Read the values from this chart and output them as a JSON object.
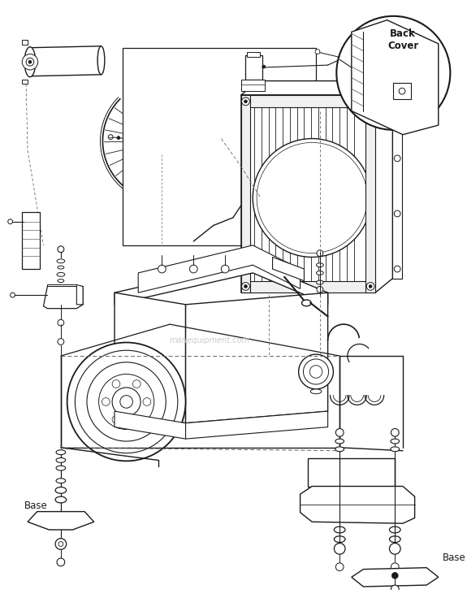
{
  "bg_color": "#ffffff",
  "line_color": "#1a1a1a",
  "gray": "#666666",
  "light_gray": "#999999",
  "labels": {
    "base_left": "Base",
    "base_right": "Base",
    "back_cover": "Back\nCover"
  },
  "watermark": "marlequipment.com",
  "figsize": [
    5.75,
    7.36
  ],
  "dpi": 100
}
